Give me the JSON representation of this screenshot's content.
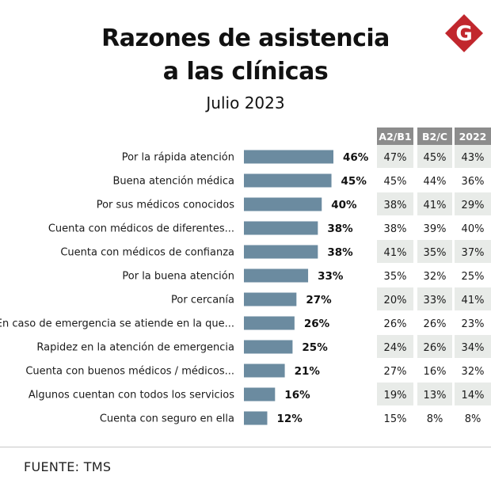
{
  "header": {
    "title_line1": "Razones de asistencia",
    "title_line2": "a las clínicas",
    "subtitle": "Julio 2023"
  },
  "logo": {
    "letter": "G",
    "color": "#c1272d",
    "icon": "g-logo-icon"
  },
  "chart_data": {
    "type": "bar",
    "orientation": "horizontal",
    "bar_color": "#6b8ba0",
    "categories": [
      "Por la rápida atención",
      "Buena atención médica",
      "Por sus médicos conocidos",
      "Cuenta con médicos de diferentes...",
      "Cuenta con médicos de confianza",
      "Por la buena atención",
      "Por cercanía",
      "En caso de emergencia se atiende en la que...",
      "Rapidez en la atención de emergencia",
      "Cuenta con buenos médicos / médicos...",
      "Algunos cuentan con todos los servicios",
      "Cuenta con seguro en ella"
    ],
    "values": [
      46,
      45,
      40,
      38,
      38,
      33,
      27,
      26,
      25,
      21,
      16,
      12
    ],
    "value_labels": [
      "46%",
      "45%",
      "40%",
      "38%",
      "38%",
      "33%",
      "27%",
      "26%",
      "25%",
      "21%",
      "16%",
      "12%"
    ],
    "table": {
      "columns": [
        "A2/B1",
        "B2/C",
        "2022"
      ],
      "rows": [
        [
          "47%",
          "45%",
          "43%"
        ],
        [
          "45%",
          "44%",
          "36%"
        ],
        [
          "38%",
          "41%",
          "29%"
        ],
        [
          "38%",
          "39%",
          "40%"
        ],
        [
          "41%",
          "35%",
          "37%"
        ],
        [
          "35%",
          "32%",
          "25%"
        ],
        [
          "20%",
          "33%",
          "41%"
        ],
        [
          "26%",
          "26%",
          "23%"
        ],
        [
          "24%",
          "26%",
          "34%"
        ],
        [
          "27%",
          "16%",
          "32%"
        ],
        [
          "19%",
          "13%",
          "14%"
        ],
        [
          "15%",
          "8%",
          "8%"
        ]
      ],
      "header_color": "#8c8c8c",
      "shade_color": "#e8ebe8"
    }
  },
  "footer": {
    "source": "FUENTE: TMS"
  }
}
